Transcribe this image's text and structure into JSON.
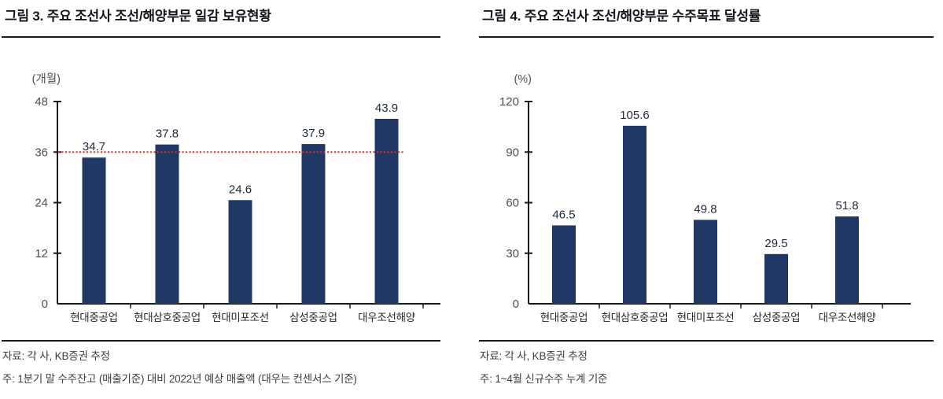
{
  "colors": {
    "bar": "#1f3864",
    "axis": "#1a1a1a",
    "reference_line": "#e02b2b",
    "title_text": "#15151d",
    "footer_text": "#3d3d42",
    "tick_label": "#4e4e58",
    "background": "#ffffff"
  },
  "figures": [
    {
      "title": "그림 3. 주요 조선사 조선/해양부문 일감 보유현황",
      "source": "자료: 각 사, KB증권 추정",
      "note": "주: 1분기 말 수주잔고 (매출기준) 대비 2022년 예상 매출액 (대우는 컨센서스 기준)"
    },
    {
      "title": "그림 4. 주요 조선사 조선/해양부문 수주목표 달성률",
      "source": "자료: 각 사, KB증권 추정",
      "note": "주: 1~4월 신규수주 누계 기준"
    }
  ],
  "chart_data": [
    {
      "type": "bar",
      "title": "그림 3. 주요 조선사 조선/해양부문 일감 보유현황",
      "unit": "(개월)",
      "categories": [
        "현대중공업",
        "현대삼호중공업",
        "현대미포조선",
        "삼성중공업",
        "대우조선해양"
      ],
      "values": [
        34.7,
        37.8,
        24.6,
        37.9,
        43.9
      ],
      "ylim": [
        0,
        48
      ],
      "yticks": [
        0,
        12,
        24,
        36,
        48
      ],
      "reference_line": 36,
      "bar_color": "#1f3864",
      "grid": false,
      "legend": "none",
      "xlabel": "",
      "ylabel": "개월"
    },
    {
      "type": "bar",
      "title": "그림 4. 주요 조선사 조선/해양부문 수주목표 달성률",
      "unit": "(%)",
      "categories": [
        "현대중공업",
        "현대삼호중공업",
        "현대미포조선",
        "삼성중공업",
        "대우조선해양"
      ],
      "values": [
        46.5,
        105.6,
        49.8,
        29.5,
        51.8
      ],
      "ylim": [
        0,
        120
      ],
      "yticks": [
        0,
        30,
        60,
        90,
        120
      ],
      "reference_line": null,
      "bar_color": "#1f3864",
      "grid": false,
      "legend": "none",
      "xlabel": "",
      "ylabel": "%"
    }
  ]
}
